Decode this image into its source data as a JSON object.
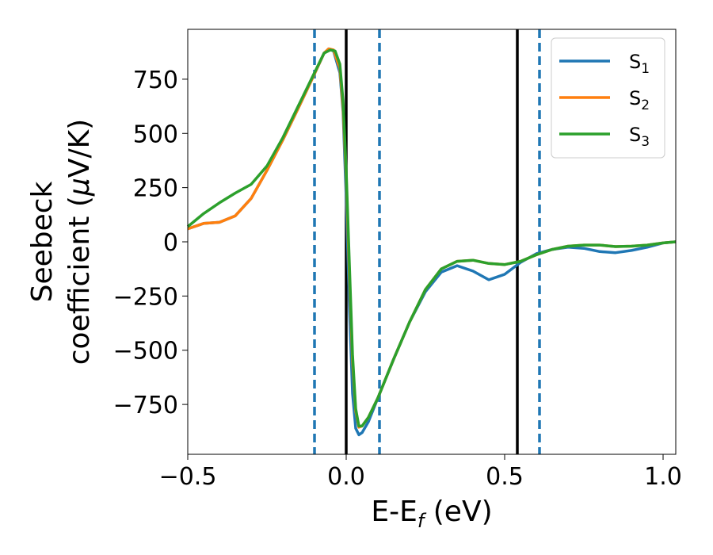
{
  "chart_data": {
    "type": "line",
    "title": "",
    "xlabel": "E-E",
    "xlabel_sub": "f",
    "xlabel_unit": " (eV)",
    "ylabel_line1": "Seebeck",
    "ylabel_line2": "coefficient  (",
    "ylabel_mu": "μ",
    "ylabel_unit": "V/K)",
    "xlim": [
      -0.5,
      1.04
    ],
    "ylim": [
      -980,
      980
    ],
    "xticks": [
      -0.5,
      0.0,
      0.5,
      1.0
    ],
    "xtick_labels": [
      "−0.5",
      "0.0",
      "0.5",
      "1.0"
    ],
    "yticks": [
      750,
      500,
      250,
      0,
      -250,
      -500,
      -750
    ],
    "ytick_labels": [
      "750",
      "500",
      "250",
      "0",
      "−250",
      "−500",
      "−750"
    ],
    "grid": false,
    "legend_position": "top-right",
    "vlines_solid": [
      0.0,
      0.54
    ],
    "vlines_dashed": [
      -0.1,
      0.105,
      0.61
    ],
    "series": [
      {
        "name": "S",
        "sub": "1",
        "color": "#1f77b4",
        "points": [
          [
            -0.5,
            60
          ],
          [
            -0.45,
            85
          ],
          [
            -0.4,
            90
          ],
          [
            -0.35,
            120
          ],
          [
            -0.3,
            200
          ],
          [
            -0.25,
            330
          ],
          [
            -0.2,
            470
          ],
          [
            -0.15,
            620
          ],
          [
            -0.1,
            775
          ],
          [
            -0.07,
            870
          ],
          [
            -0.055,
            890
          ],
          [
            -0.04,
            880
          ],
          [
            -0.02,
            780
          ],
          [
            -0.01,
            600
          ],
          [
            0.0,
            200
          ],
          [
            0.01,
            -300
          ],
          [
            0.02,
            -700
          ],
          [
            0.03,
            -860
          ],
          [
            0.04,
            -890
          ],
          [
            0.05,
            -880
          ],
          [
            0.07,
            -830
          ],
          [
            0.1,
            -720
          ],
          [
            0.15,
            -540
          ],
          [
            0.2,
            -370
          ],
          [
            0.25,
            -230
          ],
          [
            0.3,
            -140
          ],
          [
            0.35,
            -110
          ],
          [
            0.4,
            -135
          ],
          [
            0.45,
            -175
          ],
          [
            0.5,
            -150
          ],
          [
            0.55,
            -95
          ],
          [
            0.6,
            -55
          ],
          [
            0.65,
            -35
          ],
          [
            0.7,
            -25
          ],
          [
            0.75,
            -30
          ],
          [
            0.8,
            -45
          ],
          [
            0.85,
            -50
          ],
          [
            0.9,
            -40
          ],
          [
            0.95,
            -25
          ],
          [
            1.0,
            -5
          ],
          [
            1.04,
            0
          ]
        ]
      },
      {
        "name": "S",
        "sub": "2",
        "color": "#ff7f0e",
        "points": [
          [
            -0.5,
            60
          ],
          [
            -0.45,
            85
          ],
          [
            -0.4,
            90
          ],
          [
            -0.35,
            120
          ],
          [
            -0.3,
            200
          ],
          [
            -0.25,
            330
          ],
          [
            -0.2,
            470
          ],
          [
            -0.15,
            620
          ],
          [
            -0.1,
            775
          ],
          [
            -0.07,
            870
          ],
          [
            -0.055,
            890
          ],
          [
            -0.04,
            885
          ],
          [
            -0.02,
            800
          ],
          [
            -0.01,
            620
          ],
          [
            0.0,
            300
          ],
          [
            0.01,
            -150
          ],
          [
            0.02,
            -550
          ],
          [
            0.03,
            -780
          ],
          [
            0.04,
            -855
          ],
          [
            0.05,
            -850
          ],
          [
            0.07,
            -810
          ],
          [
            0.1,
            -720
          ],
          [
            0.15,
            -540
          ],
          [
            0.2,
            -370
          ],
          [
            0.25,
            -220
          ],
          [
            0.3,
            -125
          ],
          [
            0.35,
            -90
          ],
          [
            0.4,
            -85
          ],
          [
            0.45,
            -100
          ],
          [
            0.5,
            -105
          ],
          [
            0.55,
            -90
          ],
          [
            0.6,
            -60
          ],
          [
            0.65,
            -35
          ],
          [
            0.7,
            -20
          ],
          [
            0.75,
            -15
          ],
          [
            0.8,
            -15
          ],
          [
            0.85,
            -22
          ],
          [
            0.9,
            -20
          ],
          [
            0.95,
            -15
          ],
          [
            1.0,
            -5
          ],
          [
            1.04,
            0
          ]
        ]
      },
      {
        "name": "S",
        "sub": "3",
        "color": "#2ca02c",
        "points": [
          [
            -0.5,
            70
          ],
          [
            -0.45,
            130
          ],
          [
            -0.4,
            180
          ],
          [
            -0.35,
            225
          ],
          [
            -0.3,
            265
          ],
          [
            -0.25,
            350
          ],
          [
            -0.2,
            480
          ],
          [
            -0.15,
            630
          ],
          [
            -0.1,
            780
          ],
          [
            -0.07,
            870
          ],
          [
            -0.05,
            885
          ],
          [
            -0.035,
            880
          ],
          [
            -0.02,
            820
          ],
          [
            -0.01,
            650
          ],
          [
            0.0,
            330
          ],
          [
            0.01,
            -100
          ],
          [
            0.02,
            -520
          ],
          [
            0.03,
            -770
          ],
          [
            0.04,
            -850
          ],
          [
            0.05,
            -850
          ],
          [
            0.07,
            -810
          ],
          [
            0.1,
            -720
          ],
          [
            0.15,
            -540
          ],
          [
            0.2,
            -370
          ],
          [
            0.25,
            -220
          ],
          [
            0.3,
            -125
          ],
          [
            0.35,
            -90
          ],
          [
            0.4,
            -85
          ],
          [
            0.45,
            -100
          ],
          [
            0.5,
            -105
          ],
          [
            0.55,
            -90
          ],
          [
            0.6,
            -60
          ],
          [
            0.65,
            -35
          ],
          [
            0.7,
            -20
          ],
          [
            0.75,
            -15
          ],
          [
            0.8,
            -15
          ],
          [
            0.85,
            -22
          ],
          [
            0.9,
            -20
          ],
          [
            0.95,
            -15
          ],
          [
            1.0,
            -5
          ],
          [
            1.04,
            0
          ]
        ]
      }
    ]
  }
}
